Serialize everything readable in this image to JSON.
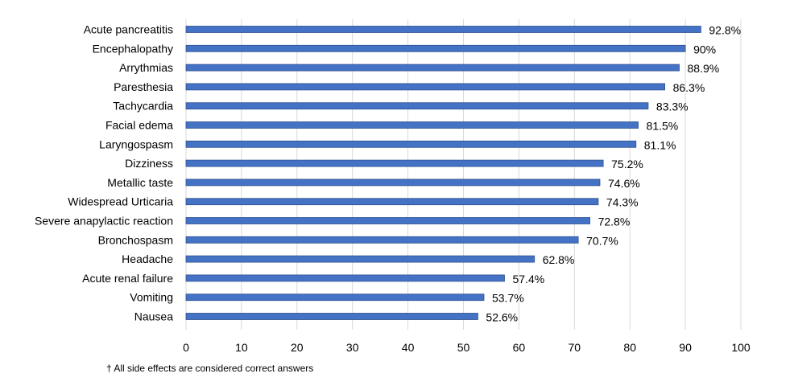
{
  "colors": {
    "bar_fill": "#4472C4",
    "bar_stroke": "#2F528F",
    "grid": "#D9D9D9"
  },
  "chart_data": {
    "type": "bar",
    "orientation": "horizontal",
    "categories": [
      "Acute pancreatitis",
      "Encephalopathy",
      "Arrythmias",
      "Paresthesia",
      "Tachycardia",
      "Facial edema",
      "Laryngospasm",
      "Dizziness",
      "Metallic taste",
      "Widespread Urticaria",
      "Severe anapylactic reaction",
      "Bronchospasm",
      "Headache",
      "Acute renal failure",
      "Vomiting",
      "Nausea"
    ],
    "values": [
      92.8,
      90,
      88.9,
      86.3,
      83.3,
      81.5,
      81.1,
      75.2,
      74.6,
      74.3,
      72.8,
      70.7,
      62.8,
      57.4,
      53.7,
      52.6
    ],
    "value_labels": [
      "92.8%",
      "90%",
      "88.9%",
      "86.3%",
      "83.3%",
      "81.5%",
      "81.1%",
      "75.2%",
      "74.6%",
      "74.3%",
      "72.8%",
      "70.7%",
      "62.8%",
      "57.4%",
      "53.7%",
      "52.6%"
    ],
    "xlim": [
      0,
      100
    ],
    "x_ticks": [
      0,
      10,
      20,
      30,
      40,
      50,
      60,
      70,
      80,
      90,
      100
    ],
    "title": "",
    "xlabel": "",
    "ylabel": "",
    "grid": "vertical",
    "legend": "none"
  },
  "footnote": "† All side effects are considered correct answers"
}
